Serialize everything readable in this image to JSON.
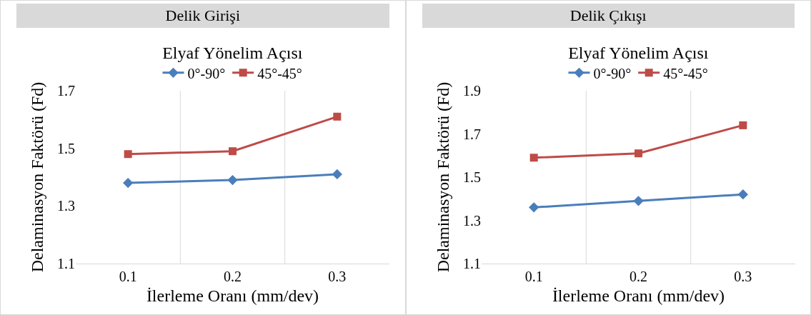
{
  "chart_data": [
    {
      "type": "line",
      "title": "Delik Girişi",
      "legend_title": "Elyaf Yönelim Açısı",
      "xlabel": "İlerleme Oranı (mm/dev)",
      "ylabel": "Delaminasyon Faktörü (Fd)",
      "categories": [
        "0.1",
        "0.2",
        "0.3"
      ],
      "ylim": [
        1.1,
        1.7
      ],
      "yticks": [
        1.1,
        1.3,
        1.5,
        1.7
      ],
      "grid": "x",
      "legend": "top",
      "series": [
        {
          "name": "0°-90°",
          "color": "#4a7ebb",
          "marker": "diamond",
          "values": [
            1.38,
            1.39,
            1.41
          ]
        },
        {
          "name": "45°-45°",
          "color": "#be4b48",
          "marker": "square",
          "values": [
            1.48,
            1.49,
            1.61
          ]
        }
      ]
    },
    {
      "type": "line",
      "title": "Delik Çıkışı",
      "legend_title": "Elyaf Yönelim Açısı",
      "xlabel": "İlerleme Oranı (mm/dev)",
      "ylabel": "Delaminasyon Faktörü (Fd)",
      "categories": [
        "0.1",
        "0.2",
        "0.3"
      ],
      "ylim": [
        1.1,
        1.9
      ],
      "yticks": [
        1.1,
        1.3,
        1.5,
        1.7,
        1.9
      ],
      "grid": "x",
      "legend": "top",
      "series": [
        {
          "name": "0°-90°",
          "color": "#4a7ebb",
          "marker": "diamond",
          "values": [
            1.36,
            1.39,
            1.42
          ]
        },
        {
          "name": "45°-45°",
          "color": "#be4b48",
          "marker": "square",
          "values": [
            1.59,
            1.61,
            1.74
          ]
        }
      ]
    }
  ]
}
